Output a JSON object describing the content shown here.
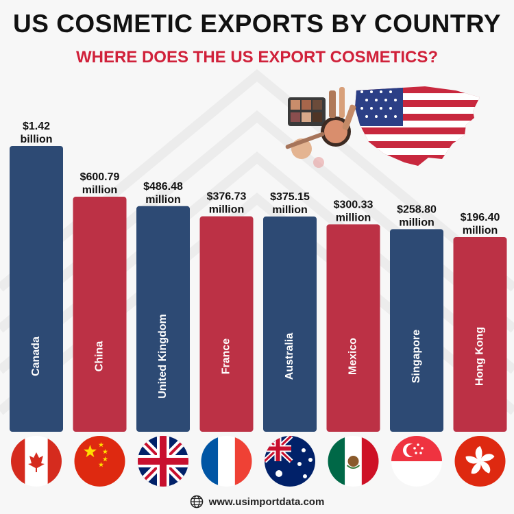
{
  "title": "US COSMETIC EXPORTS BY COUNTRY",
  "subtitle": "WHERE DOES THE US EXPORT COSMETICS?",
  "footer": {
    "website": "www.usimportdata.com",
    "icon": "globe-icon"
  },
  "illustration": {
    "description_icons": [
      "makeup-palette-icon",
      "us-flag-map-icon"
    ]
  },
  "colors": {
    "navy": "#2d4a74",
    "red": "#bc3145",
    "title": "#111111",
    "subtitle": "#d0213a"
  },
  "chart_data": {
    "type": "bar",
    "unit": "USD",
    "categories": [
      "Canada",
      "China",
      "United Kingdom",
      "France",
      "Australia",
      "Mexico",
      "Singapore",
      "Hong Kong"
    ],
    "values": [
      1420,
      600.79,
      486.48,
      376.73,
      375.15,
      300.33,
      258.8,
      196.4
    ],
    "value_units": "millions",
    "value_labels": [
      [
        "$1.42",
        "billion"
      ],
      [
        "$600.79",
        "million"
      ],
      [
        "$486.48",
        "million"
      ],
      [
        "$376.73",
        "million"
      ],
      [
        "$375.15",
        "million"
      ],
      [
        "$300.33",
        "million"
      ],
      [
        "$258.80",
        "million"
      ],
      [
        "$196.40",
        "million"
      ]
    ],
    "bar_colors": [
      "#2d4a74",
      "#bc3145",
      "#2d4a74",
      "#bc3145",
      "#2d4a74",
      "#bc3145",
      "#2d4a74",
      "#bc3145"
    ],
    "flags": [
      "canada-flag-icon",
      "china-flag-icon",
      "uk-flag-icon",
      "france-flag-icon",
      "australia-flag-icon",
      "mexico-flag-icon",
      "singapore-flag-icon",
      "hong-kong-flag-icon"
    ],
    "title": "US COSMETIC EXPORTS BY COUNTRY",
    "xlabel": "",
    "ylabel": ""
  }
}
